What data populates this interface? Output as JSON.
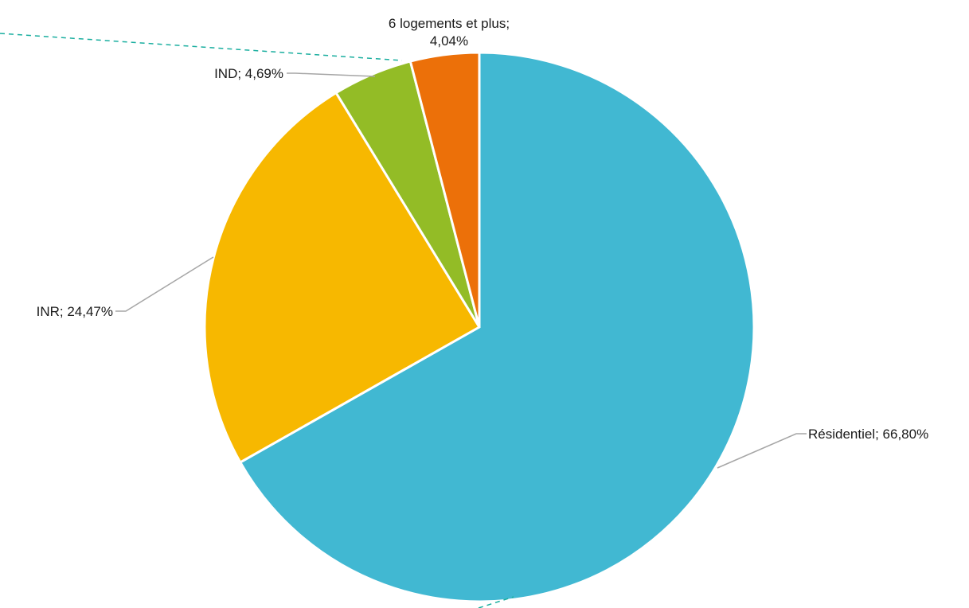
{
  "chart_data": {
    "type": "pie",
    "title": "",
    "start_angle_deg": 0,
    "direction": "clockwise",
    "slices": [
      {
        "label": "Résidentiel",
        "value": 66.8,
        "value_text": "66,80%",
        "color": "#41B8D2"
      },
      {
        "label": "INR",
        "value": 24.47,
        "value_text": "24,47%",
        "color": "#F7B800"
      },
      {
        "label": "IND",
        "value": 4.69,
        "value_text": "4,69%",
        "color": "#93BC26"
      },
      {
        "label": "6 logements et plus",
        "value": 4.04,
        "value_text": "4,04%",
        "color": "#EC7009"
      }
    ],
    "slice_border_color": "#ffffff",
    "leader_line_color": "#A6A6A6",
    "overlay_dashed_line_color": "#1AAE9F",
    "legend": "none"
  }
}
